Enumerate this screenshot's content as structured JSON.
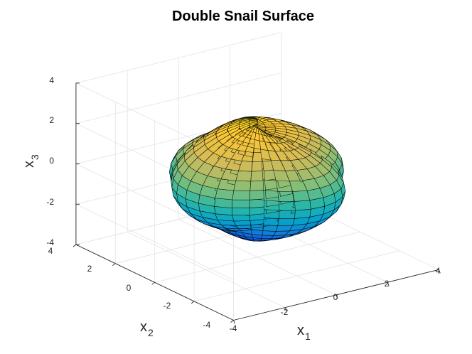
{
  "chart_data": {
    "type": "surface",
    "title": "Double Snail Surface",
    "xlabel": "x",
    "xlabel_sub": "1",
    "ylabel": "x",
    "ylabel_sub": "2",
    "zlabel": "x",
    "zlabel_sub": "3",
    "xlim": [
      -4,
      4
    ],
    "ylim": [
      -4,
      4
    ],
    "zlim": [
      -4,
      4
    ],
    "x_ticks": [
      "-4",
      "-2",
      "0",
      "2",
      "4"
    ],
    "y_ticks": [
      "-4",
      "-2",
      "0",
      "2",
      "4"
    ],
    "z_ticks": [
      "-4",
      "-2",
      "0",
      "2",
      "4"
    ],
    "grid": true,
    "colormap": "parula",
    "colormap_colors": [
      "#352a87",
      "#0f5cdd",
      "#1481d6",
      "#06a4ca",
      "#2eb7a4",
      "#87bf77",
      "#d1bb59",
      "#fec832",
      "#f9fb0e"
    ],
    "mesh_color": "#000000"
  }
}
